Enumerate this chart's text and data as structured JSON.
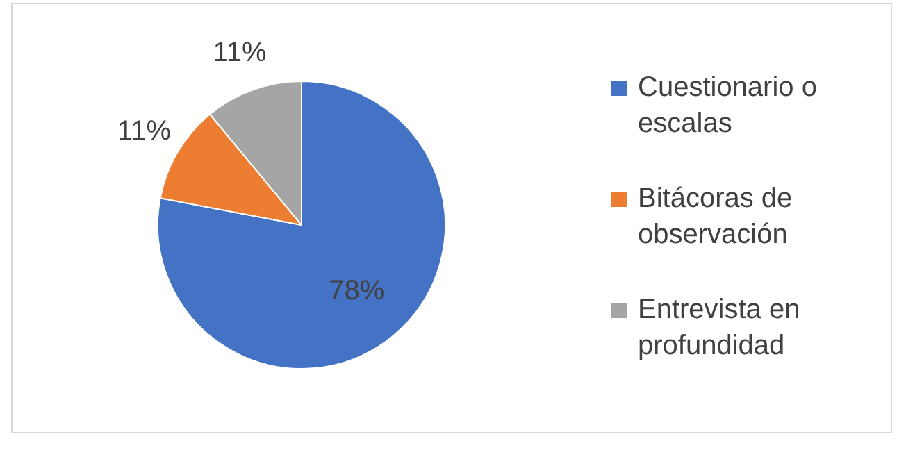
{
  "chart_data": {
    "type": "pie",
    "categories": [
      "Cuestionario o escalas",
      "Bitácoras de observación",
      "Entrevista en profundidad"
    ],
    "values": [
      78,
      11,
      11
    ],
    "colors": [
      "#4472c4",
      "#ed7d31",
      "#a5a5a5"
    ],
    "value_labels": [
      "78%",
      "11%",
      "11%"
    ],
    "legend": "right"
  }
}
